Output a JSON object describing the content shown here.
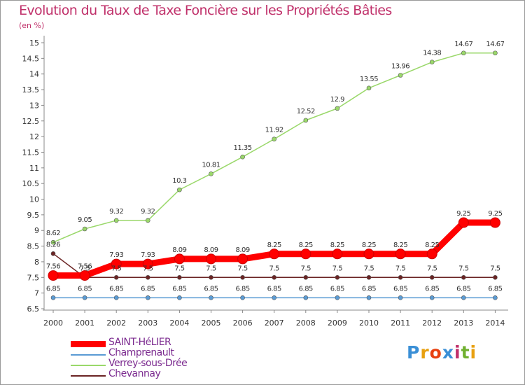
{
  "chart_data": {
    "type": "line",
    "title": "Evolution du Taux de Taxe Foncière sur les Propriétés Bâties",
    "ylabel": "(en %)",
    "xlabel": "",
    "ylim": [
      6.5,
      15
    ],
    "yticks": [
      "6.5",
      "7",
      "7.5",
      "8",
      "8.5",
      "9",
      "9.5",
      "10",
      "10.5",
      "11",
      "11.5",
      "12",
      "12.5",
      "13",
      "13.5",
      "14",
      "14.5",
      "15"
    ],
    "categories": [
      "2000",
      "2001",
      "2002",
      "2003",
      "2004",
      "2005",
      "2006",
      "2007",
      "2008",
      "2009",
      "2010",
      "2011",
      "2012",
      "2013",
      "2014"
    ],
    "grid": false,
    "legend_position": "bottom-left",
    "series": [
      {
        "name": "Champrenault",
        "color": "#5a9bd4",
        "values": [
          6.85,
          6.85,
          6.85,
          6.85,
          6.85,
          6.85,
          6.85,
          6.85,
          6.85,
          6.85,
          6.85,
          6.85,
          6.85,
          6.85,
          6.85
        ],
        "labels": [
          "6.85",
          "6.85",
          "6.85",
          "6.85",
          "6.85",
          "6.85",
          "6.85",
          "6.85",
          "6.85",
          "6.85",
          "6.85",
          "6.85",
          "6.85",
          "6.85",
          "6.85"
        ]
      },
      {
        "name": "Chevannay",
        "color": "#6b2424",
        "values": [
          8.26,
          7.5,
          7.5,
          7.5,
          7.5,
          7.5,
          7.5,
          7.5,
          7.5,
          7.5,
          7.5,
          7.5,
          7.5,
          7.5,
          7.5
        ],
        "labels": [
          "8.26",
          "7.5",
          "7.5",
          "7.5",
          "7.5",
          "7.5",
          "7.5",
          "7.5",
          "7.5",
          "7.5",
          "7.5",
          "7.5",
          "7.5",
          "7.5",
          "7.5"
        ]
      },
      {
        "name": "Verrey-sous-Drée",
        "color": "#9ad86a",
        "values": [
          8.62,
          9.05,
          9.32,
          9.32,
          10.3,
          10.81,
          11.35,
          11.92,
          12.52,
          12.9,
          13.55,
          13.96,
          14.38,
          14.67,
          14.67
        ],
        "labels": [
          "8.62",
          "9.05",
          "9.32",
          "9.32",
          "10.3",
          "10.81",
          "11.35",
          "11.92",
          "12.52",
          "12.9",
          "13.55",
          "13.96",
          "14.38",
          "14.67",
          "14.67"
        ]
      },
      {
        "name": "SAINT-HéLIER",
        "color": "#ff0000",
        "values": [
          7.56,
          7.56,
          7.93,
          7.93,
          8.09,
          8.09,
          8.09,
          8.25,
          8.25,
          8.25,
          8.25,
          8.25,
          8.25,
          9.25,
          9.25
        ],
        "labels": [
          "7.56",
          "7.56",
          "7.93",
          "7.93",
          "8.09",
          "8.09",
          "8.09",
          "8.25",
          "8.25",
          "8.25",
          "8.25",
          "8.25",
          "8.25",
          "9.25",
          "9.25"
        ]
      }
    ],
    "legend": [
      "SAINT-HéLIER",
      "Champrenault",
      "Verrey-sous-Drée",
      "Chevannay"
    ]
  },
  "logo": {
    "letters": [
      "P",
      "r",
      "o",
      "x",
      "i",
      "t",
      "i"
    ],
    "colors": [
      "#3a8fd6",
      "#e8a010",
      "#e84010",
      "#3a8fd6",
      "#c0306a",
      "#70b030",
      "#e8a010"
    ]
  }
}
